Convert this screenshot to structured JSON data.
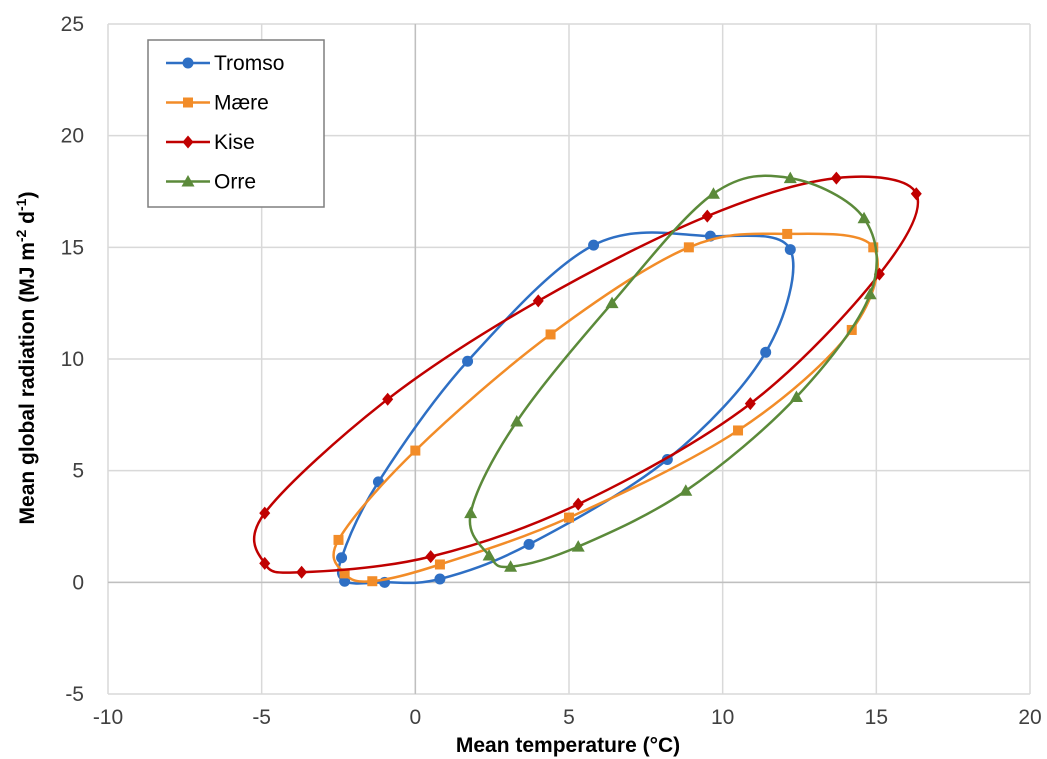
{
  "chart_data": {
    "type": "scatter",
    "title": "",
    "xlabel": "Mean temperature (°C)",
    "ylabel_parts": [
      "Mean global radiation (MJ m",
      "-2",
      " d",
      "-1",
      ")"
    ],
    "xlim": [
      -10,
      20
    ],
    "ylim": [
      -5,
      25
    ],
    "x_ticks": [
      -10,
      -5,
      0,
      5,
      10,
      15,
      20
    ],
    "y_ticks": [
      -5,
      0,
      5,
      10,
      15,
      20,
      25
    ],
    "x_tick_labels": [
      "-10",
      "-5",
      "0",
      "5",
      "10",
      "15",
      "20"
    ],
    "y_tick_labels": [
      "-5",
      "0",
      "5",
      "10",
      "15",
      "20",
      "25"
    ],
    "grid": true,
    "legend_position": "top-left",
    "smoothed_lines": true,
    "series": [
      {
        "name": "Tromso",
        "color": "#2e6fc4",
        "marker": "circle",
        "points": [
          [
            -1.0,
            0.0
          ],
          [
            -2.3,
            0.05
          ],
          [
            -2.4,
            1.1
          ],
          [
            -1.2,
            4.5
          ],
          [
            1.7,
            9.9
          ],
          [
            5.8,
            15.1
          ],
          [
            9.6,
            15.5
          ],
          [
            12.2,
            14.9
          ],
          [
            11.4,
            10.3
          ],
          [
            8.2,
            5.5
          ],
          [
            3.7,
            1.7
          ],
          [
            0.8,
            0.15
          ]
        ]
      },
      {
        "name": "Mære",
        "color": "#f28c28",
        "marker": "square",
        "points": [
          [
            -1.4,
            0.05
          ],
          [
            -2.3,
            0.4
          ],
          [
            -2.5,
            1.9
          ],
          [
            0.0,
            5.9
          ],
          [
            4.4,
            11.1
          ],
          [
            8.9,
            15.0
          ],
          [
            12.1,
            15.6
          ],
          [
            14.9,
            15.0
          ],
          [
            14.2,
            11.3
          ],
          [
            10.5,
            6.8
          ],
          [
            5.0,
            2.9
          ],
          [
            0.8,
            0.8
          ]
        ]
      },
      {
        "name": "Kise",
        "color": "#c00000",
        "marker": "diamond",
        "points": [
          [
            -3.7,
            0.45
          ],
          [
            -4.9,
            0.85
          ],
          [
            -4.9,
            3.1
          ],
          [
            -0.9,
            8.2
          ],
          [
            4.0,
            12.6
          ],
          [
            9.5,
            16.4
          ],
          [
            13.7,
            18.1
          ],
          [
            16.3,
            17.4
          ],
          [
            15.1,
            13.8
          ],
          [
            10.9,
            8.0
          ],
          [
            5.3,
            3.5
          ],
          [
            0.5,
            1.15
          ]
        ]
      },
      {
        "name": "Orre",
        "color": "#5b8a3a",
        "marker": "triangle",
        "points": [
          [
            3.1,
            0.7
          ],
          [
            2.4,
            1.2
          ],
          [
            1.8,
            3.1
          ],
          [
            3.3,
            7.2
          ],
          [
            6.4,
            12.5
          ],
          [
            9.7,
            17.4
          ],
          [
            12.2,
            18.1
          ],
          [
            14.6,
            16.3
          ],
          [
            14.8,
            12.9
          ],
          [
            12.4,
            8.3
          ],
          [
            8.8,
            4.1
          ],
          [
            5.3,
            1.6
          ]
        ]
      }
    ]
  }
}
